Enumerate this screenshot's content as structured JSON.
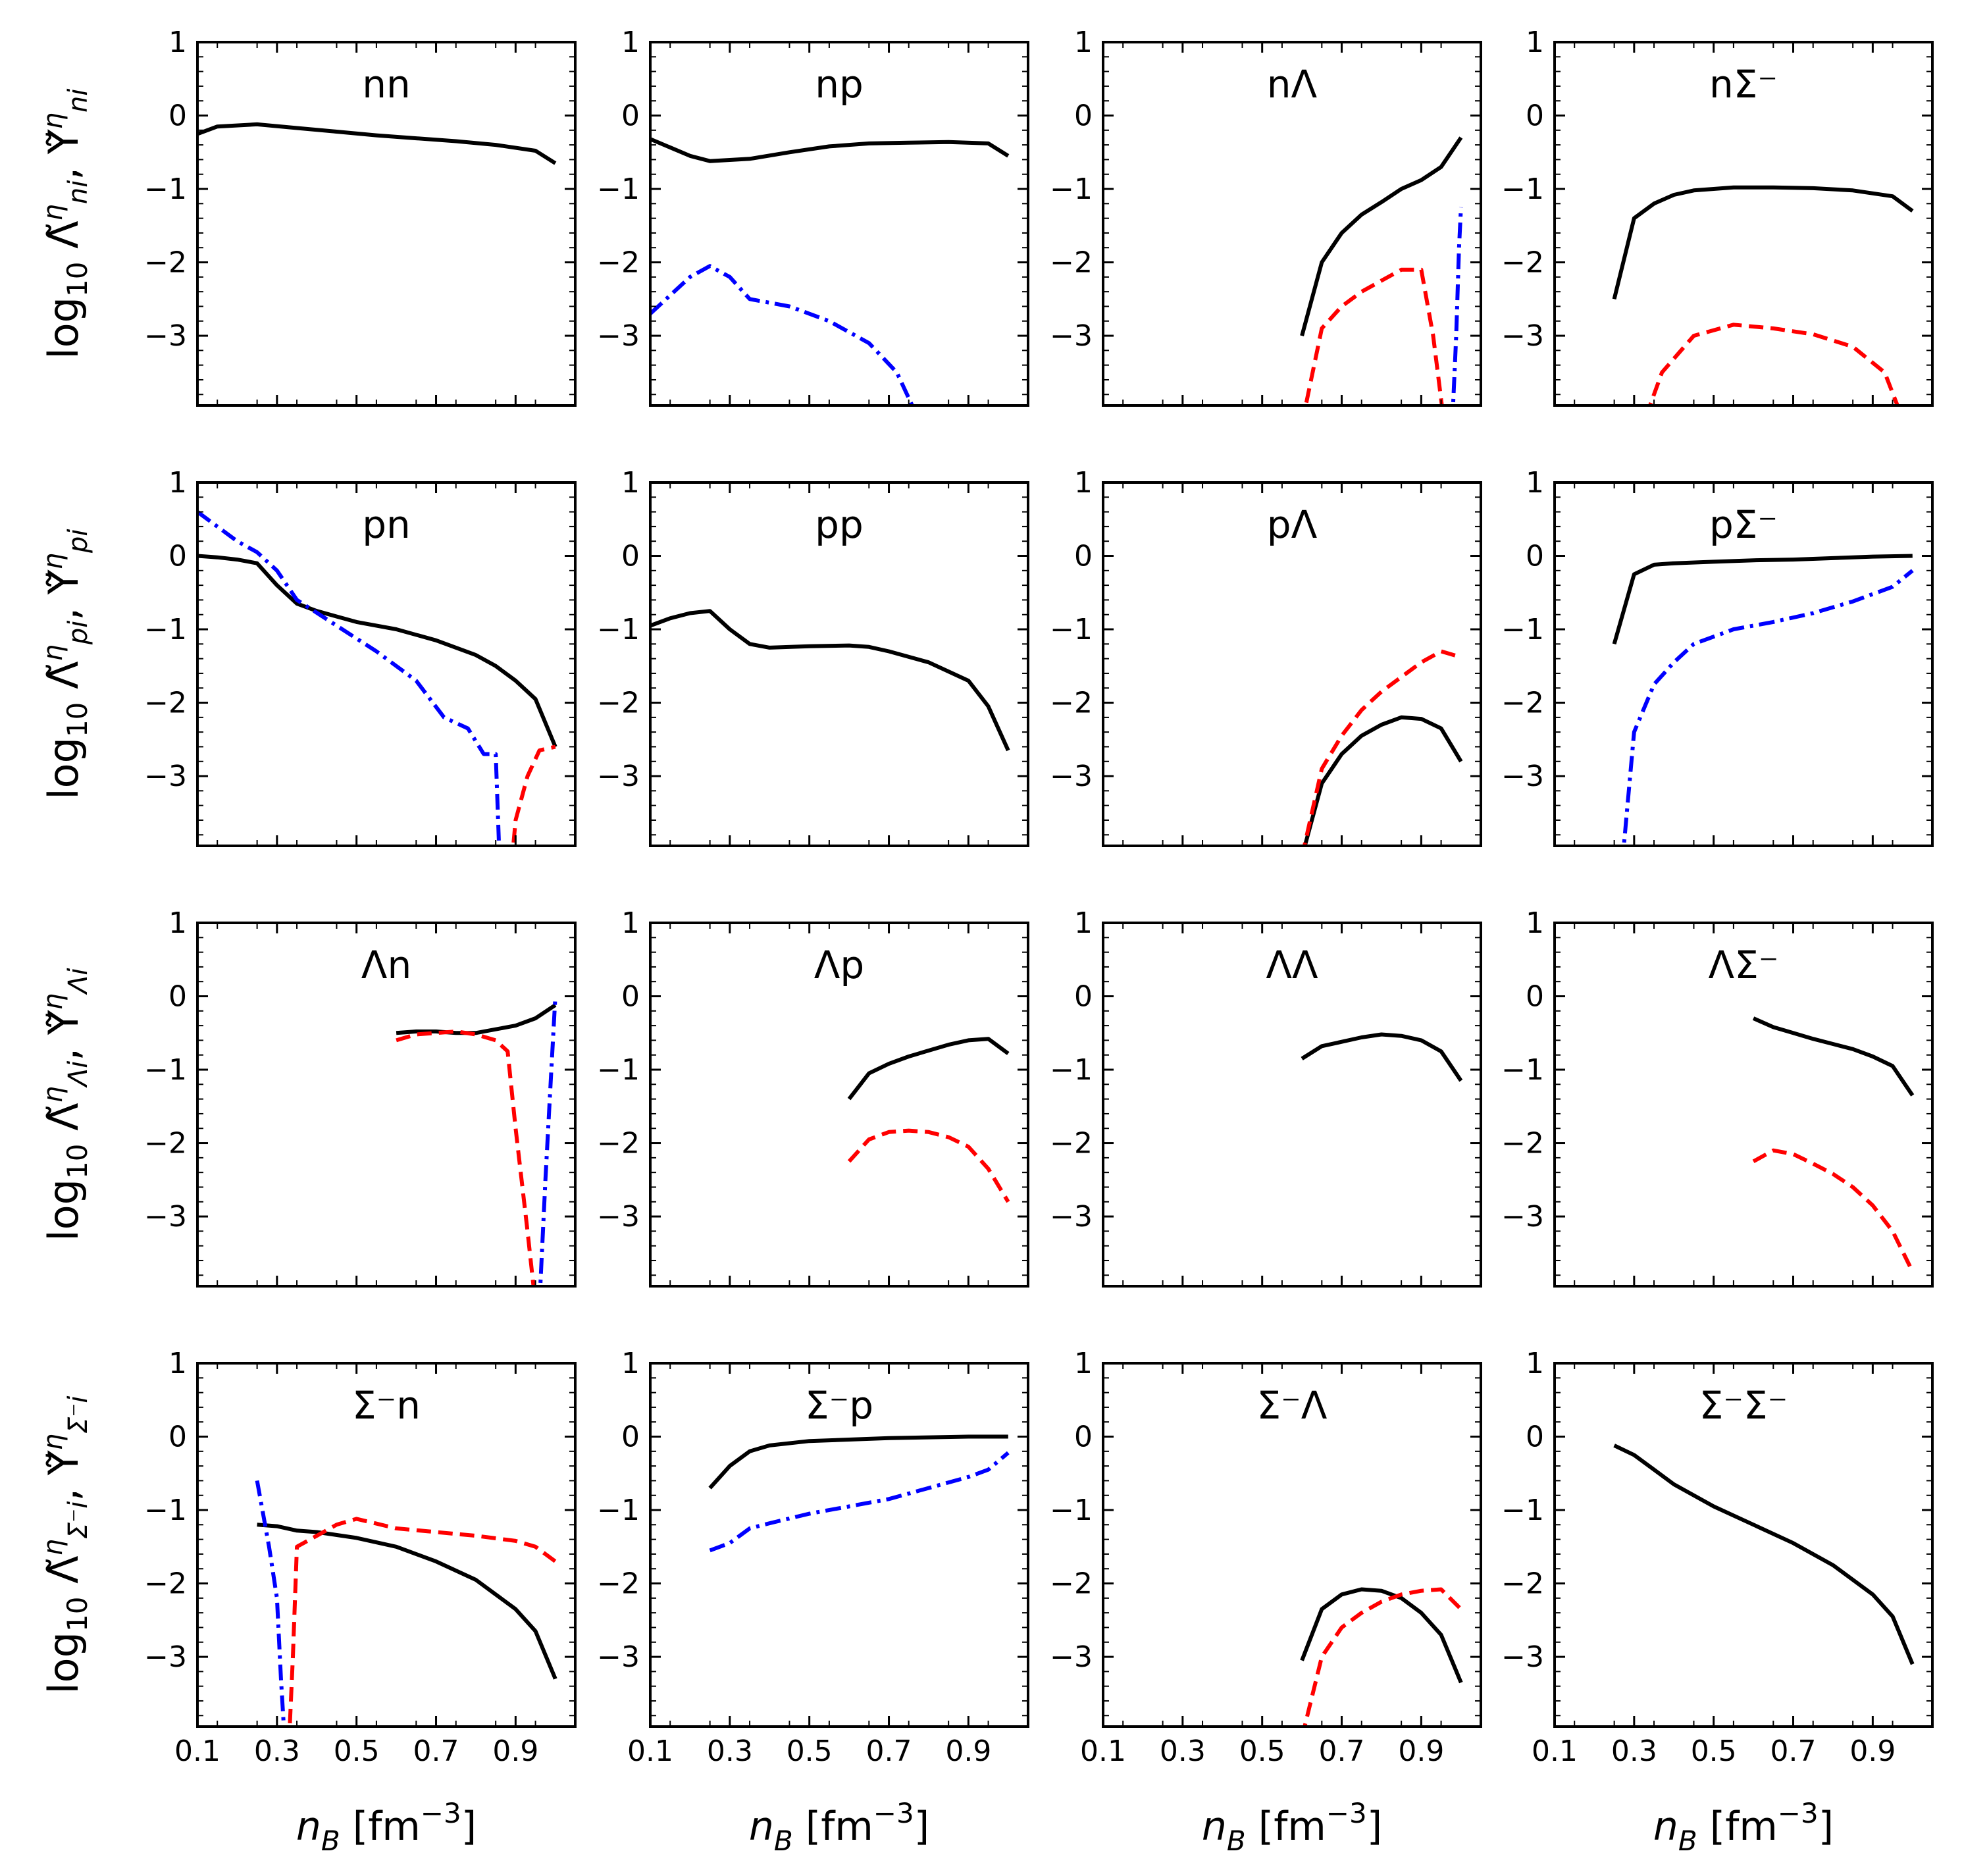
{
  "chart_data": {
    "type": "line",
    "layout": "4x4 grid",
    "x_ticks": [
      "0.1",
      "0.3",
      "0.5",
      "0.7",
      "0.9"
    ],
    "y_ticks": [
      "1",
      "0",
      "−1",
      "−2",
      "−3"
    ],
    "xlim": [
      0.1,
      1.05
    ],
    "ylim": [
      -3.95,
      1
    ],
    "xlabel": {
      "var": "n",
      "sub": "B",
      "unit": " [fm",
      "exp": "−3",
      "close": "]"
    },
    "series_styles": {
      "black": {
        "color": "#000000",
        "dash": "solid"
      },
      "red": {
        "color": "#ff0000",
        "dash": "dashed"
      },
      "blue": {
        "color": "#0000ff",
        "dash": "dashdot"
      }
    },
    "row_labels": [
      {
        "sub1": "ni",
        "sub2": "ni"
      },
      {
        "sub1": "pi",
        "sub2": "pi"
      },
      {
        "sub1": "Λi",
        "sub2": "Λi"
      },
      {
        "sub1": "Σ⁻i",
        "sub2": "Σ⁻i"
      }
    ],
    "ylabel_parts": {
      "log": "log",
      "base": "10",
      "lam": "Λ̃",
      "ups": "Υ̃",
      "sup": "η",
      "comma": ","
    },
    "panels": [
      {
        "title": "nn",
        "series": [
          {
            "color": "black",
            "x": [
              0.1,
              0.15,
              0.25,
              0.35,
              0.45,
              0.55,
              0.65,
              0.75,
              0.85,
              0.95,
              1.0
            ],
            "y": [
              -0.25,
              -0.15,
              -0.12,
              -0.17,
              -0.22,
              -0.27,
              -0.31,
              -0.35,
              -0.4,
              -0.48,
              -0.65
            ]
          }
        ]
      },
      {
        "title": "np",
        "series": [
          {
            "color": "black",
            "x": [
              0.1,
              0.2,
              0.25,
              0.35,
              0.45,
              0.55,
              0.65,
              0.75,
              0.85,
              0.95,
              1.0
            ],
            "y": [
              -0.32,
              -0.55,
              -0.62,
              -0.59,
              -0.5,
              -0.42,
              -0.38,
              -0.37,
              -0.36,
              -0.38,
              -0.55
            ]
          },
          {
            "color": "blue",
            "x": [
              0.1,
              0.2,
              0.25,
              0.3,
              0.35,
              0.45,
              0.55,
              0.65,
              0.72,
              0.78
            ],
            "y": [
              -2.7,
              -2.2,
              -2.05,
              -2.2,
              -2.5,
              -2.6,
              -2.8,
              -3.1,
              -3.5,
              -4.2
            ]
          }
        ]
      },
      {
        "title": "nΛ",
        "series": [
          {
            "color": "black",
            "x": [
              0.6,
              0.65,
              0.7,
              0.75,
              0.8,
              0.85,
              0.9,
              0.95,
              1.0
            ],
            "y": [
              -3.0,
              -2.0,
              -1.6,
              -1.35,
              -1.18,
              -1.0,
              -0.88,
              -0.7,
              -0.3
            ]
          },
          {
            "color": "red",
            "x": [
              0.6,
              0.65,
              0.7,
              0.75,
              0.8,
              0.85,
              0.9,
              0.93,
              0.96
            ],
            "y": [
              -4.2,
              -2.9,
              -2.6,
              -2.4,
              -2.25,
              -2.1,
              -2.1,
              -3.0,
              -4.3
            ]
          },
          {
            "color": "blue",
            "x": [
              0.978,
              0.988,
              0.995,
              1.0
            ],
            "y": [
              -4.2,
              -3.0,
              -1.8,
              -1.25
            ]
          }
        ]
      },
      {
        "title": "nΣ⁻",
        "series": [
          {
            "color": "black",
            "x": [
              0.25,
              0.3,
              0.35,
              0.4,
              0.45,
              0.55,
              0.65,
              0.75,
              0.85,
              0.95,
              1.0
            ],
            "y": [
              -2.5,
              -1.4,
              -1.2,
              -1.08,
              -1.02,
              -0.98,
              -0.98,
              -0.99,
              -1.02,
              -1.1,
              -1.3
            ]
          },
          {
            "color": "red",
            "x": [
              0.33,
              0.37,
              0.45,
              0.55,
              0.65,
              0.75,
              0.85,
              0.93,
              0.98
            ],
            "y": [
              -4.1,
              -3.5,
              -3.0,
              -2.85,
              -2.9,
              -2.98,
              -3.15,
              -3.5,
              -4.2
            ]
          }
        ]
      },
      {
        "title": "pn",
        "series": [
          {
            "color": "black",
            "x": [
              0.1,
              0.15,
              0.2,
              0.25,
              0.3,
              0.35,
              0.4,
              0.5,
              0.6,
              0.7,
              0.8,
              0.85,
              0.9,
              0.95,
              1.0
            ],
            "y": [
              0.0,
              -0.02,
              -0.05,
              -0.1,
              -0.4,
              -0.65,
              -0.75,
              -0.9,
              -1.0,
              -1.15,
              -1.35,
              -1.5,
              -1.7,
              -1.95,
              -2.6
            ]
          },
          {
            "color": "blue",
            "x": [
              0.1,
              0.15,
              0.2,
              0.25,
              0.3,
              0.35,
              0.45,
              0.55,
              0.65,
              0.72,
              0.78,
              0.82,
              0.85,
              0.86
            ],
            "y": [
              0.6,
              0.4,
              0.2,
              0.05,
              -0.2,
              -0.6,
              -0.95,
              -1.3,
              -1.7,
              -2.2,
              -2.35,
              -2.7,
              -2.7,
              -4.2
            ]
          },
          {
            "color": "red",
            "x": [
              0.89,
              0.9,
              0.93,
              0.96,
              1.0
            ],
            "y": [
              -4.2,
              -3.6,
              -3.0,
              -2.65,
              -2.6
            ]
          }
        ]
      },
      {
        "title": "pp",
        "series": [
          {
            "color": "black",
            "x": [
              0.1,
              0.15,
              0.2,
              0.25,
              0.3,
              0.35,
              0.4,
              0.5,
              0.6,
              0.65,
              0.7,
              0.8,
              0.9,
              0.95,
              1.0
            ],
            "y": [
              -0.95,
              -0.85,
              -0.78,
              -0.75,
              -1.0,
              -1.2,
              -1.25,
              -1.23,
              -1.22,
              -1.24,
              -1.3,
              -1.45,
              -1.7,
              -2.05,
              -2.65
            ]
          }
        ]
      },
      {
        "title": "pΛ",
        "series": [
          {
            "color": "black",
            "x": [
              0.6,
              0.65,
              0.7,
              0.75,
              0.8,
              0.85,
              0.9,
              0.95,
              1.0
            ],
            "y": [
              -4.1,
              -3.1,
              -2.7,
              -2.45,
              -2.3,
              -2.2,
              -2.22,
              -2.35,
              -2.8
            ]
          },
          {
            "color": "red",
            "x": [
              0.6,
              0.65,
              0.7,
              0.75,
              0.8,
              0.85,
              0.9,
              0.95,
              1.0
            ],
            "y": [
              -4.1,
              -2.9,
              -2.45,
              -2.1,
              -1.85,
              -1.65,
              -1.45,
              -1.3,
              -1.38
            ]
          }
        ]
      },
      {
        "title": "pΣ⁻",
        "series": [
          {
            "color": "black",
            "x": [
              0.25,
              0.3,
              0.35,
              0.4,
              0.5,
              0.6,
              0.7,
              0.8,
              0.9,
              1.0
            ],
            "y": [
              -1.2,
              -0.25,
              -0.12,
              -0.1,
              -0.08,
              -0.06,
              -0.05,
              -0.03,
              -0.01,
              0.0
            ]
          },
          {
            "color": "blue",
            "x": [
              0.27,
              0.3,
              0.35,
              0.4,
              0.45,
              0.55,
              0.65,
              0.75,
              0.85,
              0.95,
              1.0
            ],
            "y": [
              -4.2,
              -2.4,
              -1.75,
              -1.45,
              -1.2,
              -1.0,
              -0.9,
              -0.78,
              -0.62,
              -0.42,
              -0.2
            ]
          }
        ]
      },
      {
        "title": "Λn",
        "series": [
          {
            "color": "black",
            "x": [
              0.6,
              0.65,
              0.7,
              0.75,
              0.8,
              0.85,
              0.9,
              0.95,
              1.0
            ],
            "y": [
              -0.5,
              -0.48,
              -0.48,
              -0.5,
              -0.5,
              -0.45,
              -0.4,
              -0.3,
              -0.12
            ]
          },
          {
            "color": "red",
            "x": [
              0.6,
              0.65,
              0.7,
              0.75,
              0.8,
              0.85,
              0.88,
              0.9,
              0.93,
              0.95
            ],
            "y": [
              -0.6,
              -0.52,
              -0.5,
              -0.48,
              -0.52,
              -0.6,
              -0.75,
              -1.8,
              -3.2,
              -4.2
            ]
          },
          {
            "color": "blue",
            "x": [
              0.96,
              0.975,
              0.99,
              1.0
            ],
            "y": [
              -4.2,
              -2.5,
              -1.0,
              0.0
            ]
          }
        ]
      },
      {
        "title": "Λp",
        "series": [
          {
            "color": "black",
            "x": [
              0.6,
              0.65,
              0.7,
              0.75,
              0.8,
              0.85,
              0.9,
              0.95,
              1.0
            ],
            "y": [
              -1.4,
              -1.05,
              -0.92,
              -0.82,
              -0.74,
              -0.66,
              -0.6,
              -0.58,
              -0.78
            ]
          },
          {
            "color": "red",
            "x": [
              0.6,
              0.65,
              0.7,
              0.75,
              0.8,
              0.85,
              0.9,
              0.95,
              1.0
            ],
            "y": [
              -2.25,
              -1.95,
              -1.85,
              -1.83,
              -1.85,
              -1.92,
              -2.05,
              -2.35,
              -2.8
            ]
          }
        ]
      },
      {
        "title": "ΛΛ",
        "series": [
          {
            "color": "black",
            "x": [
              0.6,
              0.65,
              0.7,
              0.75,
              0.8,
              0.85,
              0.9,
              0.95,
              1.0
            ],
            "y": [
              -0.85,
              -0.68,
              -0.62,
              -0.56,
              -0.52,
              -0.54,
              -0.6,
              -0.75,
              -1.15
            ]
          }
        ]
      },
      {
        "title": "ΛΣ⁻",
        "series": [
          {
            "color": "black",
            "x": [
              0.6,
              0.65,
              0.7,
              0.75,
              0.8,
              0.85,
              0.9,
              0.95,
              1.0
            ],
            "y": [
              -0.3,
              -0.42,
              -0.5,
              -0.58,
              -0.65,
              -0.72,
              -0.82,
              -0.95,
              -1.35
            ]
          },
          {
            "color": "red",
            "x": [
              0.6,
              0.65,
              0.7,
              0.75,
              0.8,
              0.85,
              0.9,
              0.95,
              1.0
            ],
            "y": [
              -2.25,
              -2.1,
              -2.15,
              -2.28,
              -2.42,
              -2.6,
              -2.85,
              -3.2,
              -3.75
            ]
          }
        ]
      },
      {
        "title": "Σ⁻n",
        "series": [
          {
            "color": "black",
            "x": [
              0.25,
              0.3,
              0.35,
              0.4,
              0.5,
              0.6,
              0.7,
              0.8,
              0.85,
              0.9,
              0.95,
              1.0
            ],
            "y": [
              -1.2,
              -1.22,
              -1.28,
              -1.3,
              -1.38,
              -1.5,
              -1.7,
              -1.95,
              -2.15,
              -2.35,
              -2.65,
              -3.3
            ]
          },
          {
            "color": "blue",
            "x": [
              0.25,
              0.28,
              0.3,
              0.31,
              0.32
            ],
            "y": [
              -0.6,
              -1.5,
              -2.2,
              -3.3,
              -4.2
            ]
          },
          {
            "color": "red",
            "x": [
              0.33,
              0.34,
              0.35,
              0.4,
              0.45,
              0.5,
              0.6,
              0.7,
              0.8,
              0.9,
              0.95,
              1.0
            ],
            "y": [
              -4.2,
              -3.0,
              -1.5,
              -1.35,
              -1.2,
              -1.12,
              -1.25,
              -1.3,
              -1.35,
              -1.42,
              -1.5,
              -1.7
            ]
          }
        ]
      },
      {
        "title": "Σ⁻p",
        "series": [
          {
            "color": "black",
            "x": [
              0.25,
              0.3,
              0.35,
              0.4,
              0.5,
              0.6,
              0.7,
              0.8,
              0.9,
              1.0
            ],
            "y": [
              -0.7,
              -0.4,
              -0.2,
              -0.12,
              -0.06,
              -0.04,
              -0.02,
              -0.01,
              0.0,
              0.0
            ]
          },
          {
            "color": "blue",
            "x": [
              0.25,
              0.3,
              0.35,
              0.4,
              0.5,
              0.6,
              0.7,
              0.8,
              0.9,
              0.95,
              1.0
            ],
            "y": [
              -1.55,
              -1.45,
              -1.25,
              -1.18,
              -1.05,
              -0.95,
              -0.85,
              -0.7,
              -0.55,
              -0.45,
              -0.22
            ]
          }
        ]
      },
      {
        "title": "Σ⁻Λ",
        "series": [
          {
            "color": "black",
            "x": [
              0.6,
              0.65,
              0.7,
              0.75,
              0.8,
              0.85,
              0.9,
              0.95,
              1.0
            ],
            "y": [
              -3.05,
              -2.35,
              -2.15,
              -2.08,
              -2.1,
              -2.2,
              -2.4,
              -2.7,
              -3.35
            ]
          },
          {
            "color": "red",
            "x": [
              0.6,
              0.65,
              0.7,
              0.75,
              0.8,
              0.85,
              0.9,
              0.95,
              1.0
            ],
            "y": [
              -4.1,
              -3.0,
              -2.6,
              -2.4,
              -2.25,
              -2.15,
              -2.1,
              -2.08,
              -2.35
            ]
          }
        ]
      },
      {
        "title": "Σ⁻Σ⁻",
        "series": [
          {
            "color": "black",
            "x": [
              0.25,
              0.3,
              0.35,
              0.4,
              0.5,
              0.6,
              0.7,
              0.8,
              0.9,
              0.95,
              1.0
            ],
            "y": [
              -0.12,
              -0.25,
              -0.45,
              -0.65,
              -0.95,
              -1.2,
              -1.45,
              -1.75,
              -2.15,
              -2.45,
              -3.1
            ]
          }
        ]
      }
    ]
  }
}
